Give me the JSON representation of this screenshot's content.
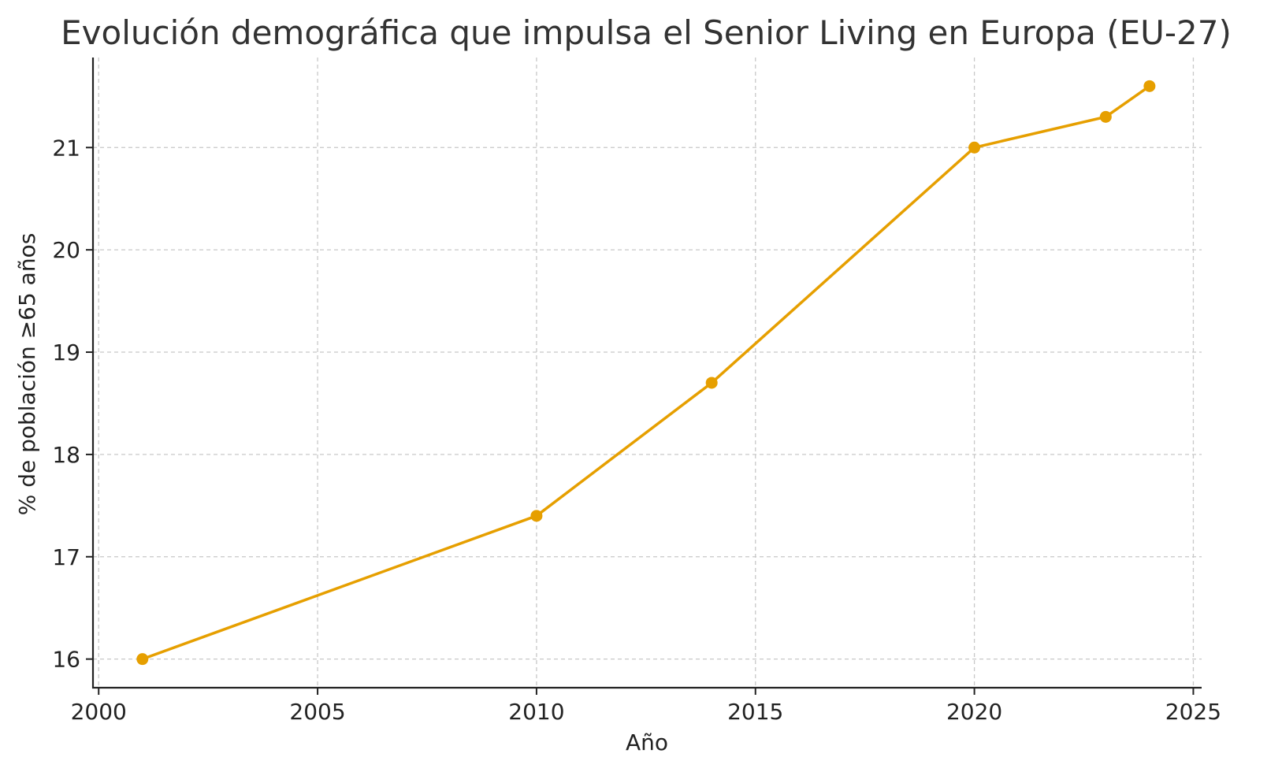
{
  "chart_data": {
    "type": "line",
    "title": "Evolución demográfica que impulsa el Senior Living en Europa (EU-27)",
    "xlabel": "Año",
    "ylabel": "% de población ≥65 años",
    "x": [
      2001,
      2010,
      2014,
      2020,
      2023,
      2024
    ],
    "series": [
      {
        "name": "% población ≥65",
        "values": [
          16.0,
          17.4,
          18.7,
          21.0,
          21.3,
          21.6
        ]
      }
    ],
    "xlim": [
      1999.87,
      2025.19
    ],
    "ylim": [
      15.72,
      21.88
    ],
    "xticks": [
      "2000",
      "2005",
      "2010",
      "2015",
      "2020",
      "2025"
    ],
    "yticks": [
      "16",
      "17",
      "18",
      "19",
      "20",
      "21"
    ],
    "grid": true,
    "color": "#E69F00"
  }
}
